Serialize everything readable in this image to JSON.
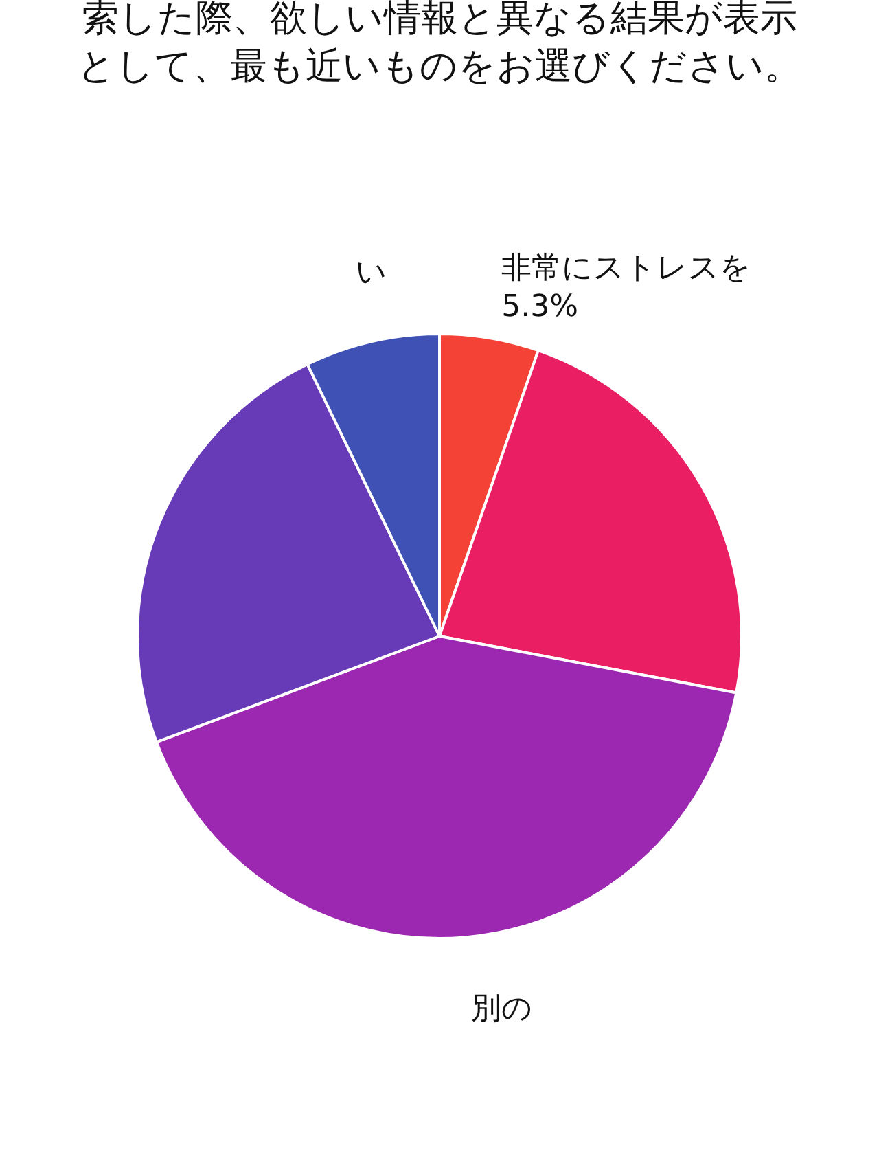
{
  "chart_data": {
    "type": "pie",
    "title": "索した際、欲しい情報と異なる結果が表示",
    "subtitle": "として、最も近いものをお選びください。",
    "categories": [
      "非常にストレスを",
      null,
      "別の",
      null,
      "い"
    ],
    "values": [
      5.3,
      22.7,
      41.3,
      23.5,
      7.2
    ],
    "value_labels": [
      "5.3%",
      null,
      null,
      null,
      null
    ],
    "colors": [
      "#f44336",
      "#e91e63",
      "#9c27b0",
      "#673ab7",
      "#3f51b5"
    ],
    "legend": false
  }
}
